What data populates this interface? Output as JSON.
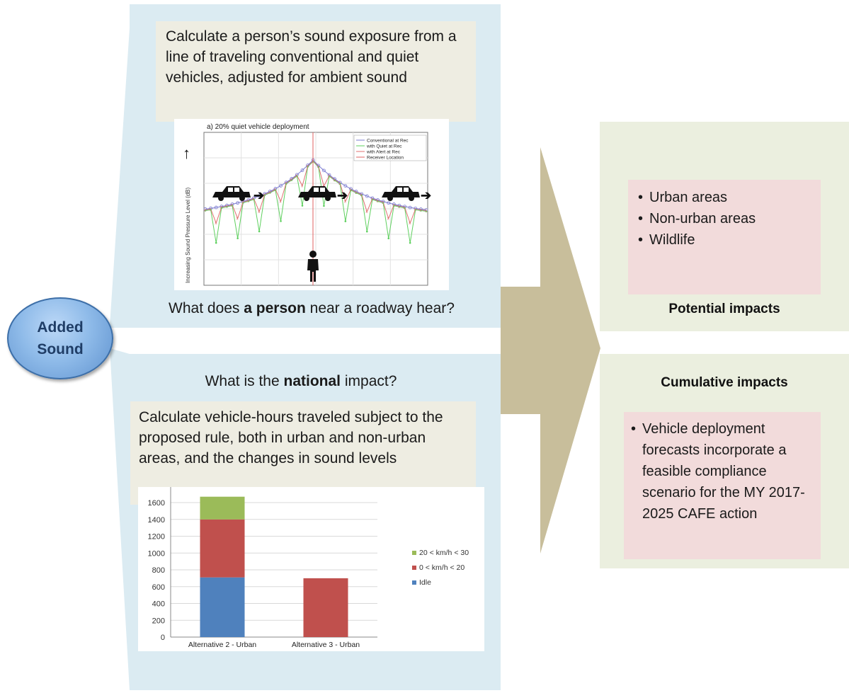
{
  "added_sound": {
    "line1": "Added",
    "line2": "Sound"
  },
  "top": {
    "callout": "Calculate a person’s sound exposure from a line of traveling conventional and quiet vehicles, adjusted for ambient sound",
    "question_pre": "What does ",
    "question_bold": "a person",
    "question_post": " near a roadway hear?"
  },
  "bottom": {
    "question_pre": "What is the ",
    "question_bold": "national",
    "question_post": " impact?",
    "callout": "Calculate vehicle-hours traveled subject to the proposed rule, both in urban and non-urban areas, and the changes in sound levels"
  },
  "potential": {
    "items": [
      "Urban areas",
      "Non-urban areas",
      "Wildlife"
    ],
    "heading": "Potential impacts"
  },
  "cumulative": {
    "heading": "Cumulative impacts",
    "text": "Vehicle deployment forecasts incorporate a feasible compliance scenario for the MY 2017-2025 CAFE action"
  },
  "chart_data": [
    {
      "type": "line",
      "title": "a) 20% quiet vehicle deployment",
      "ylabel": "Increasing Sound Pressure Level (dB)",
      "xlabel": "",
      "legend_position": "top-right",
      "series": [
        {
          "name": "Conventional at Rec",
          "color": "#7b7bd0"
        },
        {
          "name": "with Quiet at Rec",
          "color": "#5fd05f"
        },
        {
          "name": "with Alert at Rec",
          "color": "#e07070"
        },
        {
          "name": "Receiver Location",
          "color": "#e06060"
        }
      ]
    },
    {
      "type": "bar",
      "categories": [
        "Alternative 2 - Urban",
        "Alternative 3 - Urban"
      ],
      "series": [
        {
          "name": "Idle",
          "values": [
            710,
            0
          ],
          "color": "#4f81bd"
        },
        {
          "name": "0 < km/h < 20",
          "values": [
            690,
            700
          ],
          "color": "#c0504d"
        },
        {
          "name": "20 < km/h < 30",
          "values": [
            270,
            0
          ],
          "color": "#9bbb59"
        }
      ],
      "ylim": [
        0,
        1600
      ],
      "yticks": [
        0,
        200,
        400,
        600,
        800,
        1000,
        1200,
        1400,
        1600
      ],
      "legend_position": "right",
      "grid": true
    }
  ]
}
